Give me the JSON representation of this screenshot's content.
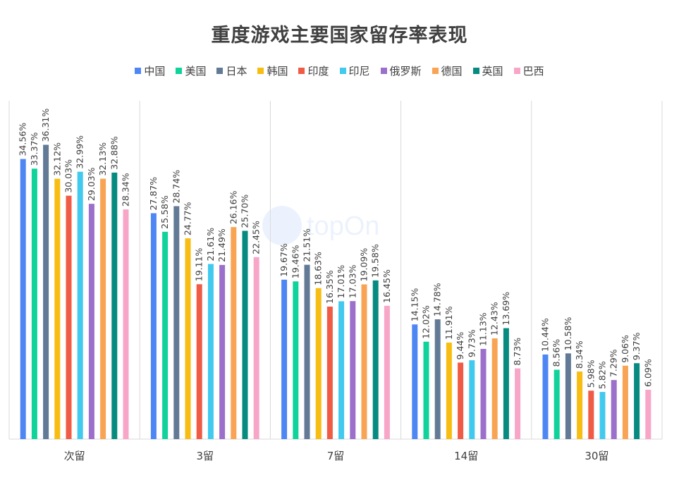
{
  "chart_data": {
    "type": "bar",
    "title": "重度游戏主要国家留存率表现",
    "categories": [
      "次留",
      "3留",
      "7留",
      "14留",
      "30留"
    ],
    "ylim": [
      0,
      40
    ],
    "grid": false,
    "legend_position": "top",
    "series": [
      {
        "name": "中国",
        "color": "#4e87f4",
        "values": [
          34.56,
          27.87,
          19.67,
          14.15,
          10.44
        ],
        "labels": [
          "34.56%",
          "27.87%",
          "19.67%",
          "14.15%",
          "10.44%"
        ]
      },
      {
        "name": "美国",
        "color": "#10d29b",
        "values": [
          33.37,
          25.58,
          19.46,
          12.02,
          8.56
        ],
        "labels": [
          "33.37%",
          "25.58%",
          "19.46%",
          "12.02%",
          "8.56%"
        ]
      },
      {
        "name": "日本",
        "color": "#627a96",
        "values": [
          36.31,
          28.74,
          21.51,
          14.78,
          10.58
        ],
        "labels": [
          "36.31%",
          "28.74%",
          "21.51%",
          "14.78%",
          "10.58%"
        ]
      },
      {
        "name": "韩国",
        "color": "#f7bd12",
        "values": [
          32.12,
          24.77,
          18.63,
          11.91,
          8.34
        ],
        "labels": [
          "32.12%",
          "24.77%",
          "18.63%",
          "11.91%",
          "8.34%"
        ]
      },
      {
        "name": "印度",
        "color": "#f05b45",
        "values": [
          30.03,
          19.11,
          16.35,
          9.44,
          5.98
        ],
        "labels": [
          "30.03%",
          "19.11%",
          "16.35%",
          "9.44%",
          "5.98%"
        ]
      },
      {
        "name": "印尼",
        "color": "#42c9ee",
        "values": [
          32.99,
          21.61,
          17.01,
          9.73,
          5.82
        ],
        "labels": [
          "32.99%",
          "21.61%",
          "17.01%",
          "9.73%",
          "5.82%"
        ]
      },
      {
        "name": "俄罗斯",
        "color": "#9c6fcb",
        "values": [
          29.03,
          21.49,
          17.03,
          11.13,
          7.29
        ],
        "labels": [
          "29.03%",
          "21.49%",
          "17.03%",
          "11.13%",
          "7.29%"
        ]
      },
      {
        "name": "德国",
        "color": "#f8a454",
        "values": [
          32.13,
          26.16,
          19.09,
          12.43,
          9.06
        ],
        "labels": [
          "32.13%",
          "26.16%",
          "19.09%",
          "12.43%",
          "9.06%"
        ]
      },
      {
        "name": "英国",
        "color": "#078b80",
        "values": [
          32.88,
          25.7,
          19.58,
          13.69,
          9.37
        ],
        "labels": [
          "32.88%",
          "25.70%",
          "19.58%",
          "13.69%",
          "9.37%"
        ]
      },
      {
        "name": "巴西",
        "color": "#f7a6c7",
        "values": [
          28.34,
          22.45,
          16.45,
          8.73,
          6.09
        ],
        "labels": [
          "28.34%",
          "22.45%",
          "16.45%",
          "8.73%",
          "6.09%"
        ]
      }
    ]
  }
}
